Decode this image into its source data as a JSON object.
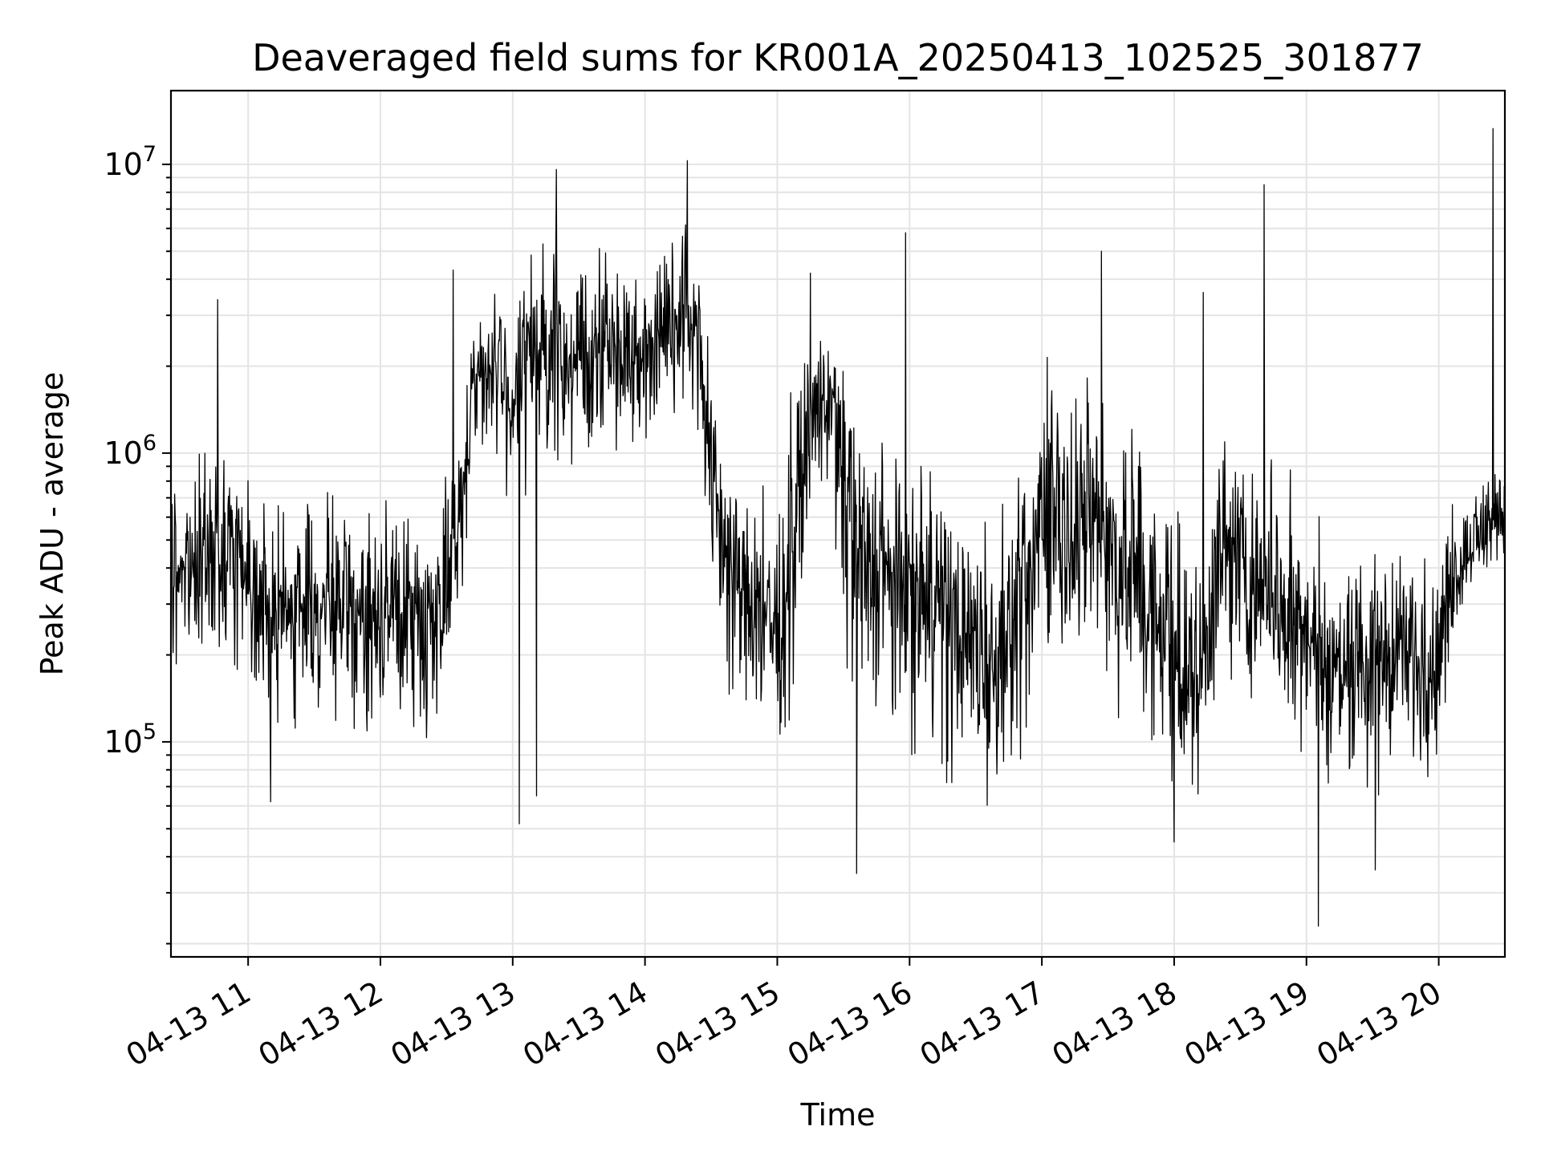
{
  "chart_data": {
    "type": "line",
    "title": "Deaveraged field sums for KR001A_20250413_102525_301877",
    "xlabel": "Time",
    "ylabel": "Peak ADU - average",
    "yscale": "log",
    "ylim": [
      18000,
      18000000
    ],
    "xlim": [
      "04-13 10:25",
      "04-13 20:30"
    ],
    "grid": true,
    "line_color": "#000000",
    "x_ticks": [
      "04-13 11",
      "04-13 12",
      "04-13 13",
      "04-13 14",
      "04-13 15",
      "04-13 16",
      "04-13 17",
      "04-13 18",
      "04-13 19",
      "04-13 20"
    ],
    "x_tick_hours": [
      11,
      12,
      13,
      14,
      15,
      16,
      17,
      18,
      19,
      20
    ],
    "y_ticks": [
      {
        "value": 100000,
        "base": "10",
        "exp": "5"
      },
      {
        "value": 1000000,
        "base": "10",
        "exp": "6"
      },
      {
        "value": 10000000,
        "base": "10",
        "exp": "7"
      }
    ],
    "series": [
      {
        "x_hours": [
          10.42,
          10.5,
          10.6,
          10.7,
          10.8,
          10.9,
          11.0,
          11.1,
          11.2,
          11.3,
          11.4,
          11.5,
          11.6,
          11.7,
          11.8,
          11.9,
          12.0,
          12.1,
          12.2,
          12.3,
          12.4,
          12.5,
          12.6,
          12.7,
          12.8,
          12.9,
          13.0,
          13.1,
          13.2,
          13.3,
          13.4,
          13.5,
          13.6,
          13.7,
          13.8,
          13.9,
          14.0,
          14.1,
          14.2,
          14.3,
          14.4,
          14.5,
          14.6,
          14.7,
          14.8,
          14.9,
          15.0,
          15.1,
          15.2,
          15.3,
          15.4,
          15.5,
          15.6,
          15.7,
          15.8,
          15.9,
          16.0,
          16.1,
          16.2,
          16.3,
          16.4,
          16.5,
          16.6,
          16.7,
          16.8,
          16.9,
          17.0,
          17.1,
          17.2,
          17.3,
          17.4,
          17.5,
          17.6,
          17.7,
          17.8,
          17.9,
          18.0,
          18.1,
          18.2,
          18.3,
          18.4,
          18.5,
          18.6,
          18.7,
          18.8,
          18.9,
          19.0,
          19.1,
          19.2,
          19.3,
          19.4,
          19.5,
          19.6,
          19.7,
          19.8,
          19.9,
          20.0,
          20.1,
          20.2,
          20.3,
          20.4,
          20.5
        ],
        "y_values": [
          300000,
          420000,
          380000,
          450000,
          400000,
          500000,
          420000,
          320000,
          280000,
          300000,
          280000,
          300000,
          280000,
          300000,
          270000,
          290000,
          260000,
          300000,
          280000,
          270000,
          300000,
          400000,
          500000,
          1900000,
          2000000,
          1900000,
          1500000,
          2200000,
          2500000,
          2300000,
          2100000,
          2000000,
          2300000,
          2400000,
          2200000,
          2500000,
          2200000,
          2400000,
          2600000,
          2800000,
          3000000,
          900000,
          500000,
          350000,
          300000,
          280000,
          250000,
          450000,
          1000000,
          1400000,
          1700000,
          700000,
          500000,
          400000,
          380000,
          360000,
          330000,
          320000,
          300000,
          280000,
          250000,
          220000,
          200000,
          230000,
          280000,
          350000,
          700000,
          650000,
          550000,
          500000,
          600000,
          500000,
          400000,
          350000,
          300000,
          250000,
          200000,
          150000,
          160000,
          400000,
          500000,
          450000,
          400000,
          350000,
          320000,
          300000,
          250000,
          200000,
          180000,
          180000,
          200000,
          180000,
          190000,
          200000,
          180000,
          180000,
          200000,
          350000,
          450000,
          500000,
          550000,
          650000
        ],
        "y_min_envelope": [
          170000,
          190000,
          200000,
          200000,
          190000,
          180000,
          160000,
          120000,
          110000,
          110000,
          110000,
          100000,
          100000,
          110000,
          100000,
          100000,
          100000,
          100000,
          95000,
          90000,
          90000,
          110000,
          200000,
          1000000,
          900000,
          1000000,
          500000,
          700000,
          800000,
          700000,
          800000,
          700000,
          900000,
          1000000,
          900000,
          1000000,
          900000,
          1000000,
          1100000,
          1200000,
          1200000,
          250000,
          150000,
          100000,
          80000,
          80000,
          70000,
          120000,
          450000,
          700000,
          800000,
          200000,
          130000,
          100000,
          90000,
          90000,
          85000,
          80000,
          75000,
          70000,
          70000,
          60000,
          60000,
          70000,
          80000,
          90000,
          180000,
          180000,
          150000,
          140000,
          160000,
          130000,
          110000,
          100000,
          90000,
          80000,
          70000,
          60000,
          60000,
          110000,
          150000,
          130000,
          120000,
          110000,
          100000,
          90000,
          80000,
          70000,
          60000,
          60000,
          60000,
          60000,
          65000,
          70000,
          70000,
          70000,
          80000,
          200000,
          300000,
          350000,
          400000,
          450000
        ],
        "y_max_envelope": [
          700000,
          900000,
          1100000,
          1200000,
          1100000,
          1300000,
          1200000,
          800000,
          700000,
          750000,
          700000,
          800000,
          750000,
          800000,
          700000,
          750000,
          700000,
          800000,
          750000,
          700000,
          750000,
          900000,
          1200000,
          3500000,
          4000000,
          3500000,
          3000000,
          5000000,
          5500000,
          5000000,
          4800000,
          4500000,
          5000000,
          5500000,
          5000000,
          5500000,
          5000000,
          5500000,
          6000000,
          6500000,
          6500000,
          2000000,
          1500000,
          1000000,
          900000,
          800000,
          800000,
          1800000,
          2500000,
          2800000,
          3200000,
          2000000,
          1500000,
          1200000,
          1100000,
          1000000,
          900000,
          900000,
          850000,
          800000,
          750000,
          700000,
          650000,
          700000,
          800000,
          1000000,
          2500000,
          2200000,
          2000000,
          1800000,
          2000000,
          1800000,
          1400000,
          1200000,
          1000000,
          900000,
          800000,
          600000,
          600000,
          1500000,
          1500000,
          1300000,
          1200000,
          1100000,
          1000000,
          900000,
          800000,
          600000,
          500000,
          450000,
          450000,
          450000,
          450000,
          450000,
          450000,
          450000,
          500000,
          700000,
          800000,
          800000,
          900000,
          1200000
        ]
      }
    ],
    "spikes": [
      {
        "hour": 10.77,
        "value": 3400000
      },
      {
        "hour": 11.17,
        "value": 62000
      },
      {
        "hour": 12.55,
        "value": 4300000
      },
      {
        "hour": 13.05,
        "value": 52000
      },
      {
        "hour": 13.18,
        "value": 65000
      },
      {
        "hour": 13.33,
        "value": 9600000
      },
      {
        "hour": 14.32,
        "value": 10300000
      },
      {
        "hour": 15.25,
        "value": 4200000
      },
      {
        "hour": 15.6,
        "value": 35000
      },
      {
        "hour": 15.97,
        "value": 5800000
      },
      {
        "hour": 17.45,
        "value": 5000000
      },
      {
        "hour": 18.0,
        "value": 45000
      },
      {
        "hour": 18.22,
        "value": 3600000
      },
      {
        "hour": 18.68,
        "value": 8500000
      },
      {
        "hour": 19.09,
        "value": 23000
      },
      {
        "hour": 19.52,
        "value": 36000
      },
      {
        "hour": 20.41,
        "value": 13300000
      }
    ]
  }
}
